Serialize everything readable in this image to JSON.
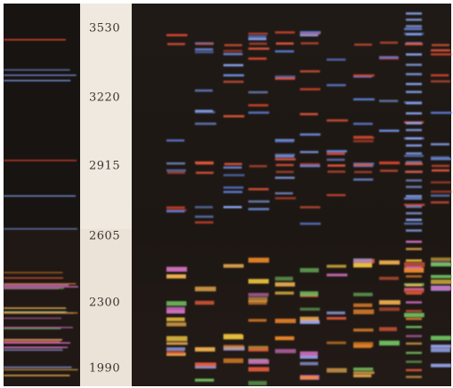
{
  "scale_labels": [
    "3530",
    "3220",
    "2915",
    "2605",
    "2300",
    "1990"
  ]
}
